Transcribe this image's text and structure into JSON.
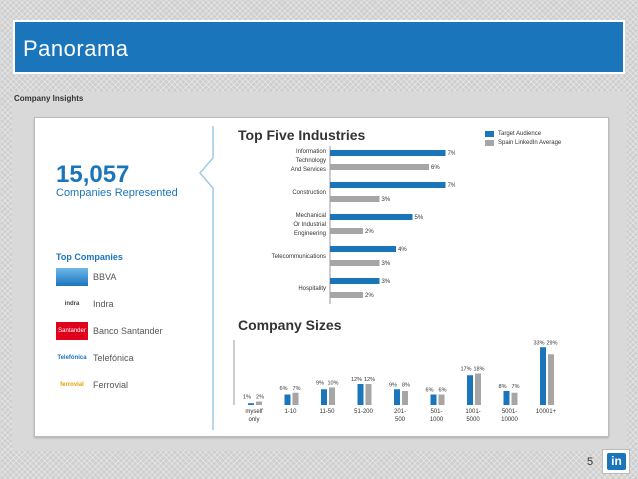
{
  "title": "Panorama",
  "section_label": "Company Insights",
  "companies_count": "15,057",
  "companies_caption": "Companies Represented",
  "top_companies_title": "Top Companies",
  "companies": [
    {
      "name": "BBVA",
      "logo": "BBVA",
      "logo_text": "",
      "color": "#3a8fd6"
    },
    {
      "name": "Indra",
      "logo": "indra",
      "logo_text": "indra",
      "color": "#444444"
    },
    {
      "name": "Banco Santander",
      "logo": "santander",
      "logo_text": "Santander",
      "color": "#e0001b"
    },
    {
      "name": "Telefónica",
      "logo": "telefonica",
      "logo_text": "Telefónica",
      "color": "#1b75bb"
    },
    {
      "name": "Ferrovial",
      "logo": "ferrovial",
      "logo_text": "ferrovial",
      "color": "#e8a000"
    }
  ],
  "legend": {
    "target": "Target Audience",
    "average": "Spain LinkedIn Average",
    "target_color": "#1b75bb",
    "average_color": "#a6a6a6"
  },
  "chart_data": [
    {
      "type": "bar",
      "orientation": "horizontal",
      "title": "Top Five Industries",
      "categories": [
        "Information Technology And Services",
        "Construction",
        "Mechanical Or Industrial Engineering",
        "Telecommunications",
        "Hospitality"
      ],
      "category_lines": [
        [
          "Information",
          "Technology",
          "And Services"
        ],
        [
          "Construction"
        ],
        [
          "Mechanical",
          "Or Industrial",
          "Engineering"
        ],
        [
          "Telecommunications"
        ],
        [
          "Hospitality"
        ]
      ],
      "series": [
        {
          "name": "Target Audience",
          "values": [
            7,
            7,
            5,
            4,
            3
          ],
          "labels": [
            "7%",
            "7%",
            "5%",
            "4%",
            "3%"
          ]
        },
        {
          "name": "Spain LinkedIn Average",
          "values": [
            6,
            3,
            2,
            3,
            2
          ],
          "labels": [
            "6%",
            "3%",
            "2%",
            "3%",
            "2%"
          ]
        }
      ]
    },
    {
      "type": "bar",
      "orientation": "vertical",
      "title": "Company Sizes",
      "categories": [
        "myself only",
        "1-10",
        "11-50",
        "51-200",
        "201-500",
        "501-1000",
        "1001-5000",
        "5001-10000",
        "10001+"
      ],
      "category_lines": [
        [
          "myself",
          "only"
        ],
        [
          "1-10"
        ],
        [
          "11-50"
        ],
        [
          "51-200"
        ],
        [
          "201-",
          "500"
        ],
        [
          "501-",
          "1000"
        ],
        [
          "1001-",
          "5000"
        ],
        [
          "5001-",
          "10000"
        ],
        [
          "10001+"
        ]
      ],
      "series": [
        {
          "name": "Target Audience",
          "values": [
            1,
            6,
            9,
            12,
            9,
            6,
            17,
            8,
            33
          ],
          "labels": [
            "1%",
            "6%",
            "9%",
            "12%",
            "9%",
            "6%",
            "17%",
            "8%",
            "33%"
          ]
        },
        {
          "name": "Spain LinkedIn Average",
          "values": [
            2,
            7,
            10,
            12,
            8,
            6,
            18,
            7,
            29
          ],
          "labels": [
            "2%",
            "7%",
            "10%",
            "12%",
            "8%",
            "6%",
            "18%",
            "7%",
            "29%"
          ]
        }
      ]
    }
  ],
  "page_number": "5",
  "brand_badge": "in"
}
